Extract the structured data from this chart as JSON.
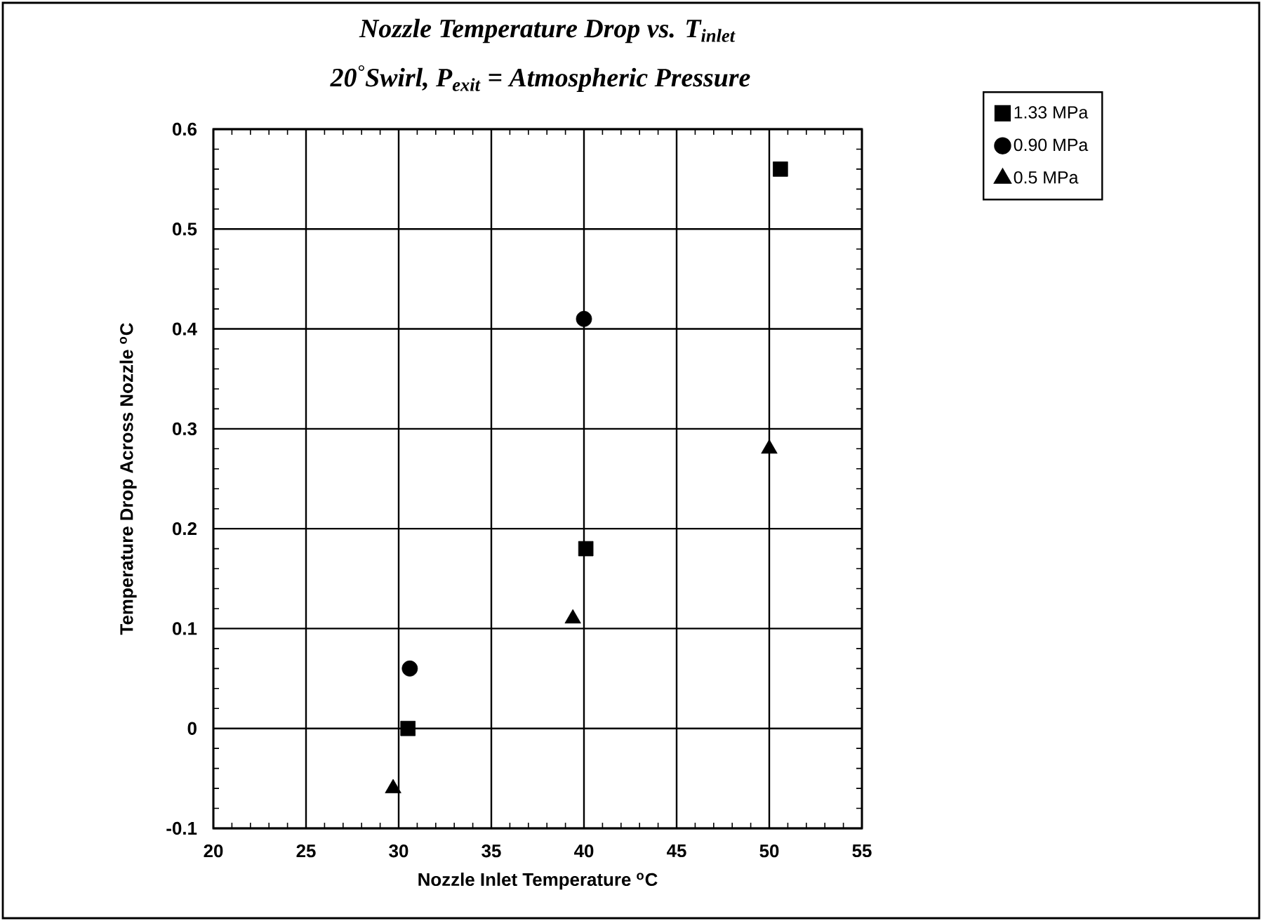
{
  "chart_data": {
    "type": "scatter",
    "title": "Nozzle Temperature Drop vs. T$_{inlet}$",
    "subtitle": "20$^{°}$Swirl, P$_{exit}$ = Atmospheric Pressure",
    "xlabel": "Nozzle Inlet Temperature   $^{o}$C",
    "ylabel": "Temperature Drop Across Nozzle   $^{o}$C",
    "xlim": [
      20,
      55
    ],
    "xticks": [
      20,
      25,
      30,
      35,
      40,
      45,
      50,
      55
    ],
    "ylim": [
      -0.1,
      0.6
    ],
    "yticks": [
      -0.1,
      0,
      0.1,
      0.2,
      0.3,
      0.4,
      0.5,
      0.6
    ],
    "grid": true,
    "legend": "top right",
    "series": [
      {
        "name": "1.33 MPa",
        "color": "#000000",
        "marker": "square",
        "x": [
          30.5,
          40.1,
          50.6
        ],
        "values": [
          0.0,
          0.18,
          0.56
        ]
      },
      {
        "name": "0.90 MPa",
        "color": "#000000",
        "marker": "circle",
        "x": [
          30.6,
          40.0
        ],
        "values": [
          0.06,
          0.41
        ]
      },
      {
        "name": "0.5 MPa",
        "color": "#000000",
        "marker": "triangle",
        "x": [
          29.7,
          39.4,
          50.0
        ],
        "values": [
          -0.06,
          0.11,
          0.28
        ]
      }
    ]
  }
}
